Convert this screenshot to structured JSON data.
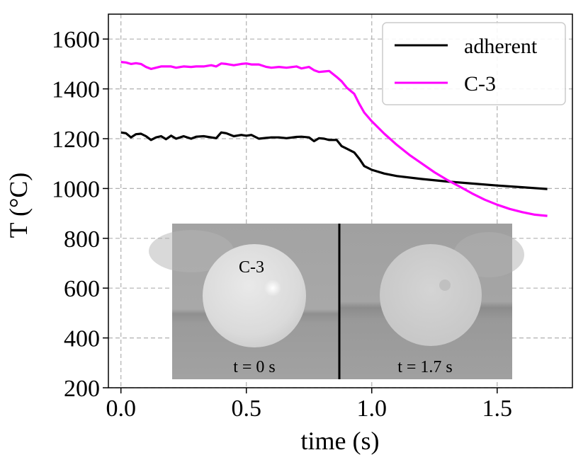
{
  "chart_data": {
    "type": "line",
    "title": "",
    "xlabel": "time (s)",
    "ylabel": "T (°C)",
    "xlim": [
      -0.05,
      1.8
    ],
    "ylim": [
      200,
      1700
    ],
    "xticks": [
      0.0,
      0.5,
      1.0,
      1.5
    ],
    "xtick_labels": [
      "0.0",
      "0.5",
      "1.0",
      "1.5"
    ],
    "yticks": [
      200,
      400,
      600,
      800,
      1000,
      1200,
      1400,
      1600
    ],
    "ytick_labels": [
      "200",
      "400",
      "600",
      "800",
      "1000",
      "1200",
      "1400",
      "1600"
    ],
    "grid": true,
    "legend_position": "top-right",
    "series": [
      {
        "name": "adherent",
        "color": "#000000",
        "x": [
          0.0,
          0.02,
          0.04,
          0.06,
          0.08,
          0.1,
          0.12,
          0.14,
          0.16,
          0.18,
          0.2,
          0.22,
          0.25,
          0.28,
          0.3,
          0.33,
          0.36,
          0.38,
          0.4,
          0.42,
          0.45,
          0.48,
          0.5,
          0.52,
          0.55,
          0.58,
          0.6,
          0.63,
          0.66,
          0.7,
          0.72,
          0.75,
          0.77,
          0.79,
          0.81,
          0.83,
          0.86,
          0.88,
          0.9,
          0.93,
          0.95,
          0.97,
          1.0,
          1.05,
          1.1,
          1.2,
          1.3,
          1.4,
          1.5,
          1.6,
          1.7
        ],
        "y": [
          1225,
          1222,
          1205,
          1218,
          1220,
          1210,
          1195,
          1205,
          1210,
          1198,
          1212,
          1200,
          1210,
          1200,
          1208,
          1210,
          1205,
          1202,
          1225,
          1222,
          1210,
          1215,
          1212,
          1215,
          1200,
          1203,
          1205,
          1205,
          1202,
          1207,
          1208,
          1205,
          1190,
          1202,
          1200,
          1195,
          1195,
          1170,
          1160,
          1145,
          1120,
          1090,
          1075,
          1060,
          1050,
          1038,
          1028,
          1020,
          1012,
          1005,
          998
        ]
      },
      {
        "name": "C-3",
        "color": "#ff00ff",
        "x": [
          0.0,
          0.02,
          0.04,
          0.06,
          0.08,
          0.1,
          0.12,
          0.14,
          0.16,
          0.18,
          0.2,
          0.22,
          0.25,
          0.28,
          0.3,
          0.33,
          0.36,
          0.38,
          0.4,
          0.42,
          0.45,
          0.48,
          0.5,
          0.52,
          0.55,
          0.58,
          0.6,
          0.63,
          0.66,
          0.7,
          0.72,
          0.75,
          0.77,
          0.79,
          0.81,
          0.83,
          0.86,
          0.88,
          0.9,
          0.93,
          0.95,
          0.97,
          1.0,
          1.05,
          1.1,
          1.15,
          1.2,
          1.25,
          1.3,
          1.35,
          1.4,
          1.45,
          1.5,
          1.55,
          1.6,
          1.65,
          1.7
        ],
        "y": [
          1508,
          1506,
          1500,
          1503,
          1500,
          1488,
          1480,
          1485,
          1490,
          1490,
          1490,
          1485,
          1490,
          1488,
          1490,
          1490,
          1495,
          1490,
          1502,
          1500,
          1495,
          1500,
          1502,
          1498,
          1498,
          1488,
          1485,
          1488,
          1485,
          1490,
          1482,
          1488,
          1475,
          1468,
          1470,
          1472,
          1448,
          1430,
          1405,
          1380,
          1340,
          1305,
          1270,
          1220,
          1175,
          1135,
          1100,
          1065,
          1035,
          1008,
          980,
          955,
          935,
          918,
          905,
          895,
          890
        ]
      }
    ],
    "inset": {
      "panels": [
        {
          "caption": "t = 0 s",
          "sample_label": "C-3"
        },
        {
          "caption": "t = 1.7 s"
        }
      ]
    }
  }
}
